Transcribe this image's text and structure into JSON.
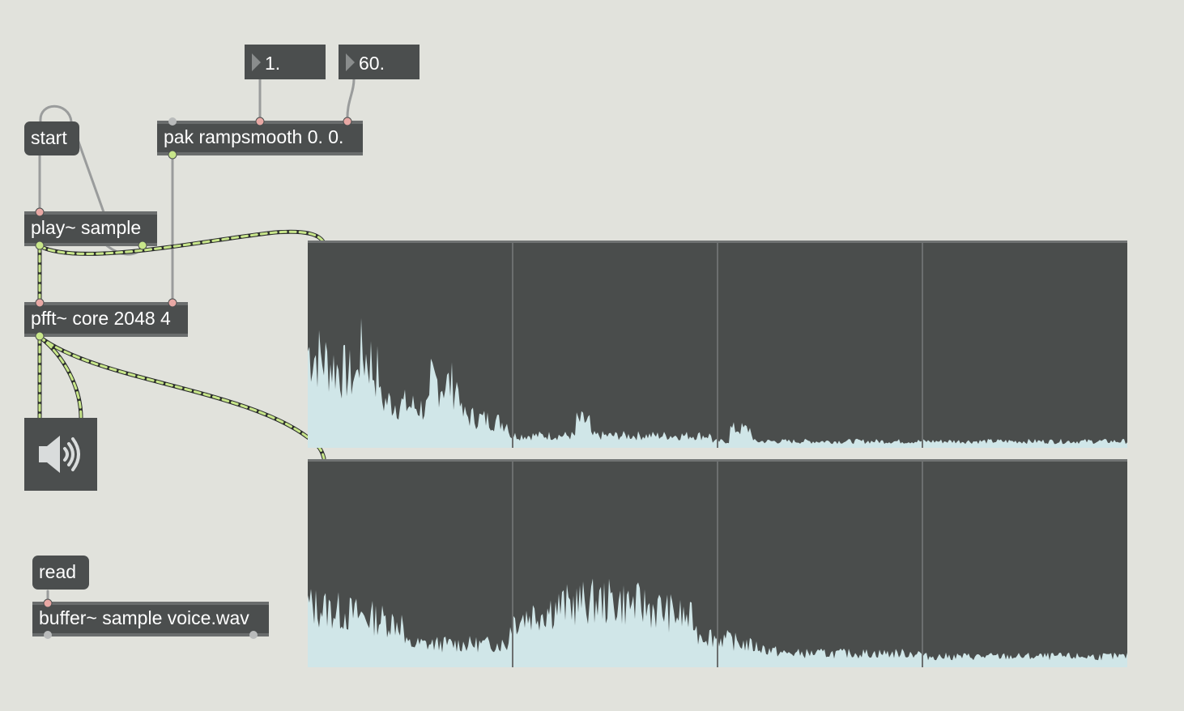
{
  "objects": {
    "num1": "1.",
    "num2": "60.",
    "start": "start",
    "pak": "pak rampsmooth 0. 0.",
    "play": "play~ sample",
    "pfft": "pfft~ core 2048 4",
    "read": "read",
    "buffer": "buffer~ sample voice.wav"
  },
  "icons": {
    "dac": "speaker-icon"
  },
  "colors": {
    "background": "#e1e2dc",
    "object": "#4b4e4e",
    "spectrum_fill": "#d0e6e8",
    "signal_cable": "#c8e68a",
    "control_cable": "#9a9c9c"
  }
}
